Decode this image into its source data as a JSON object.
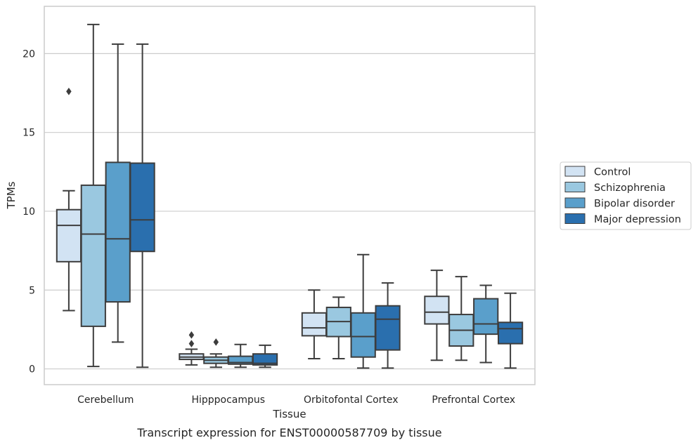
{
  "chart_data": {
    "type": "boxplot",
    "caption": "Transcript expression for ENST00000587709 by tissue",
    "xlabel": "Tissue",
    "ylabel": "TPMs",
    "ylim": [
      -1.0,
      23.0
    ],
    "yticks": [
      0,
      5,
      10,
      15,
      20
    ],
    "grid": "horizontal",
    "legend_position": "right",
    "categories": [
      "Cerebellum",
      "Hipppocampus",
      "Orbitofontal Cortex",
      "Prefrontal Cortex"
    ],
    "series": [
      {
        "name": "Control",
        "color": "#d2e3f3",
        "boxes": [
          {
            "whislo": 3.7,
            "q1": 6.8,
            "med": 9.1,
            "q3": 10.1,
            "whishi": 11.3,
            "fliers": [
              17.6
            ]
          },
          {
            "whislo": 0.25,
            "q1": 0.6,
            "med": 0.75,
            "q3": 0.95,
            "whishi": 1.25,
            "fliers": [
              1.6,
              2.15
            ]
          },
          {
            "whislo": 0.65,
            "q1": 2.1,
            "med": 2.6,
            "q3": 3.55,
            "whishi": 5.0,
            "fliers": []
          },
          {
            "whislo": 0.55,
            "q1": 2.85,
            "med": 3.6,
            "q3": 4.6,
            "whishi": 6.25,
            "fliers": []
          }
        ]
      },
      {
        "name": "Schizophrenia",
        "color": "#9ac8e0",
        "boxes": [
          {
            "whislo": 0.15,
            "q1": 2.7,
            "med": 8.55,
            "q3": 11.65,
            "whishi": 21.85,
            "fliers": []
          },
          {
            "whislo": 0.1,
            "q1": 0.35,
            "med": 0.55,
            "q3": 0.75,
            "whishi": 0.95,
            "fliers": [
              1.7
            ]
          },
          {
            "whislo": 0.65,
            "q1": 2.05,
            "med": 3.0,
            "q3": 3.9,
            "whishi": 4.55,
            "fliers": []
          },
          {
            "whislo": 0.55,
            "q1": 1.45,
            "med": 2.45,
            "q3": 3.45,
            "whishi": 5.85,
            "fliers": []
          }
        ]
      },
      {
        "name": "Bipolar disorder",
        "color": "#5a9fcb",
        "boxes": [
          {
            "whislo": 1.7,
            "q1": 4.25,
            "med": 8.25,
            "q3": 13.1,
            "whishi": 20.6,
            "fliers": []
          },
          {
            "whislo": 0.1,
            "q1": 0.3,
            "med": 0.4,
            "q3": 0.8,
            "whishi": 1.55,
            "fliers": []
          },
          {
            "whislo": 0.05,
            "q1": 0.75,
            "med": 2.05,
            "q3": 3.55,
            "whishi": 7.25,
            "fliers": []
          },
          {
            "whislo": 0.4,
            "q1": 2.2,
            "med": 2.85,
            "q3": 4.45,
            "whishi": 5.3,
            "fliers": []
          }
        ]
      },
      {
        "name": "Major depression",
        "color": "#2a6fae",
        "boxes": [
          {
            "whislo": 0.1,
            "q1": 7.45,
            "med": 9.45,
            "q3": 13.05,
            "whishi": 20.6,
            "fliers": []
          },
          {
            "whislo": 0.1,
            "q1": 0.25,
            "med": 0.35,
            "q3": 0.95,
            "whishi": 1.5,
            "fliers": []
          },
          {
            "whislo": 0.05,
            "q1": 1.2,
            "med": 3.15,
            "q3": 4.0,
            "whishi": 5.45,
            "fliers": []
          },
          {
            "whislo": 0.05,
            "q1": 1.6,
            "med": 2.55,
            "q3": 2.95,
            "whishi": 4.8,
            "fliers": []
          }
        ]
      }
    ]
  }
}
